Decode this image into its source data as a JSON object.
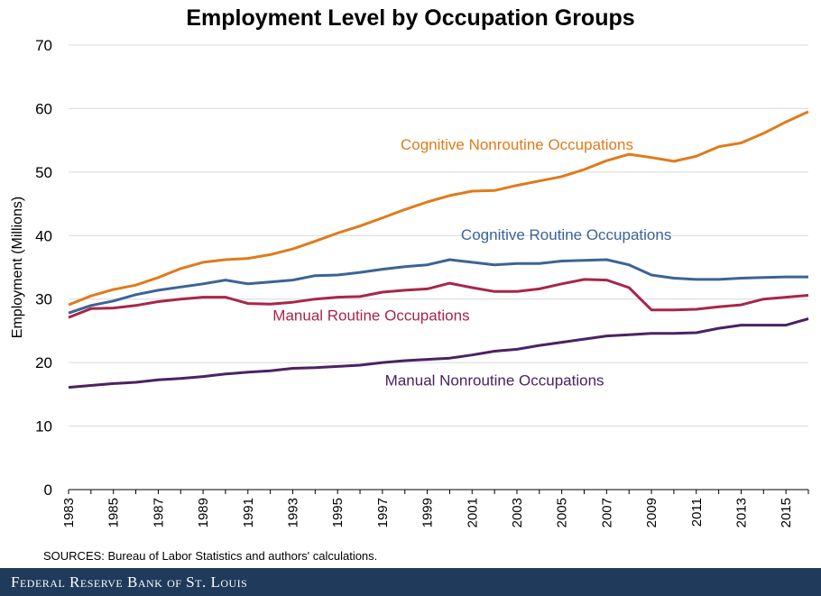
{
  "chart_data": {
    "type": "line",
    "title": "Employment Level by Occupation Groups",
    "ylabel": "Employment (Millions)",
    "xlabel": "",
    "ylim": [
      0,
      70
    ],
    "yticks": [
      0,
      10,
      20,
      30,
      40,
      50,
      60,
      70
    ],
    "xlim": [
      1983,
      2016
    ],
    "xticks": [
      "1983",
      "1985",
      "1987",
      "1989",
      "1991",
      "1993",
      "1995",
      "1997",
      "1999",
      "2001",
      "2003",
      "2005",
      "2007",
      "2009",
      "2011",
      "2013",
      "2015"
    ],
    "x": [
      1983,
      1984,
      1985,
      1986,
      1987,
      1988,
      1989,
      1990,
      1991,
      1992,
      1993,
      1994,
      1995,
      1996,
      1997,
      1998,
      1999,
      2000,
      2001,
      2002,
      2003,
      2004,
      2005,
      2006,
      2007,
      2008,
      2009,
      2010,
      2011,
      2012,
      2013,
      2014,
      2015,
      2016
    ],
    "grid": "horizontal",
    "legend": "none",
    "series": [
      {
        "name": "Cognitive Nonroutine Occupations",
        "color": "#e07b1a",
        "values": [
          29.1,
          30.5,
          31.5,
          32.2,
          33.4,
          34.8,
          35.8,
          36.2,
          36.4,
          37.0,
          37.9,
          39.1,
          40.4,
          41.5,
          42.8,
          44.1,
          45.3,
          46.3,
          47.0,
          47.1,
          47.9,
          48.6,
          49.3,
          50.4,
          51.8,
          52.8,
          52.3,
          51.7,
          52.5,
          54.0,
          54.6,
          56.1,
          57.9,
          59.5
        ]
      },
      {
        "name": "Cognitive Routine Occupations",
        "color": "#3b6496",
        "values": [
          27.8,
          29.0,
          29.7,
          30.7,
          31.4,
          31.9,
          32.4,
          33.0,
          32.4,
          32.7,
          33.0,
          33.7,
          33.8,
          34.2,
          34.7,
          35.1,
          35.4,
          36.2,
          35.8,
          35.4,
          35.6,
          35.6,
          36.0,
          36.1,
          36.2,
          35.4,
          33.8,
          33.3,
          33.1,
          33.1,
          33.3,
          33.4,
          33.5,
          33.5
        ]
      },
      {
        "name": "Manual Routine Occupations",
        "color": "#a8264a",
        "values": [
          27.1,
          28.5,
          28.6,
          29.0,
          29.6,
          30.0,
          30.3,
          30.3,
          29.3,
          29.2,
          29.5,
          30.0,
          30.3,
          30.4,
          31.1,
          31.4,
          31.6,
          32.5,
          31.8,
          31.2,
          31.2,
          31.6,
          32.4,
          33.1,
          33.0,
          31.8,
          28.3,
          28.3,
          28.4,
          28.8,
          29.1,
          30.0,
          30.3,
          30.6
        ]
      },
      {
        "name": "Manual Nonroutine Occupations",
        "color": "#4b2263",
        "values": [
          16.1,
          16.4,
          16.7,
          16.9,
          17.3,
          17.5,
          17.8,
          18.2,
          18.5,
          18.7,
          19.1,
          19.2,
          19.4,
          19.6,
          20.0,
          20.3,
          20.5,
          20.7,
          21.2,
          21.8,
          22.1,
          22.7,
          23.2,
          23.7,
          24.2,
          24.4,
          24.6,
          24.6,
          24.7,
          25.4,
          25.9,
          25.9,
          25.9,
          26.9
        ]
      }
    ]
  },
  "source_text": "SOURCES: Bureau of Labor Statistics and authors' calculations.",
  "footer_text": "Federal Reserve Bank of St. Louis"
}
